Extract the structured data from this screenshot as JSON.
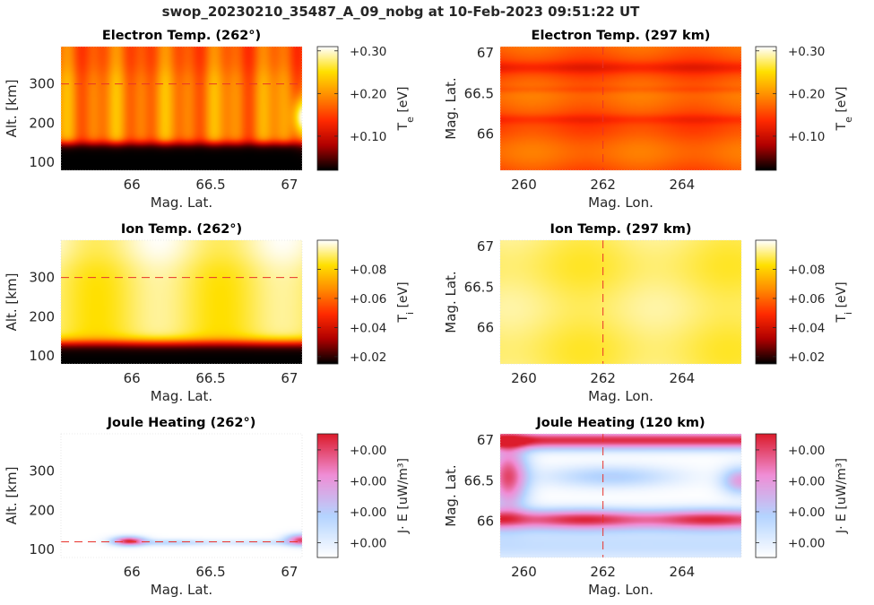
{
  "figure_title": "swop_20230210_35487_A_09_nobg at 10-Feb-2023 09:51:22 UT",
  "chart_data": [
    {
      "id": "te_alt",
      "type": "heatmap",
      "title": "Electron Temp. (262°)",
      "xlabel": "Mag. Lat.",
      "ylabel": "Alt. [km]",
      "xlim": [
        65.55,
        67.08
      ],
      "ylim": [
        80,
        395
      ],
      "xticks": [
        66,
        66.5,
        67
      ],
      "xtick_labels": [
        "66",
        "66.5",
        "67"
      ],
      "yticks": [
        100,
        200,
        300
      ],
      "ytick_labels": [
        "100",
        "200",
        "300"
      ],
      "guide": {
        "orientation": "horizontal",
        "value": 300
      },
      "colormap": "hot",
      "clim": [
        0.02,
        0.31
      ],
      "colorbar": {
        "label": "T_e [eV]",
        "ticks": [
          0.1,
          0.2,
          0.3
        ],
        "tick_labels": [
          "+0.10",
          "+0.20",
          "+0.30"
        ]
      },
      "field": "te_profile"
    },
    {
      "id": "te_map",
      "type": "heatmap",
      "title": "Electron Temp. (297 km)",
      "xlabel": "Mag. Lon.",
      "ylabel": "Mag. Lat.",
      "xlim": [
        259.4,
        265.5
      ],
      "ylim": [
        65.55,
        67.08
      ],
      "xticks": [
        260,
        262,
        264
      ],
      "xtick_labels": [
        "260",
        "262",
        "264"
      ],
      "yticks": [
        66,
        66.5,
        67
      ],
      "ytick_labels": [
        "66",
        "66.5",
        "67"
      ],
      "guide": {
        "orientation": "vertical",
        "value": 262
      },
      "colormap": "hot",
      "clim": [
        0.02,
        0.31
      ],
      "colorbar": {
        "label": "T_e [eV]",
        "ticks": [
          0.1,
          0.2,
          0.3
        ],
        "tick_labels": [
          "+0.10",
          "+0.20",
          "+0.30"
        ]
      },
      "field": "te_map"
    },
    {
      "id": "ti_alt",
      "type": "heatmap",
      "title": "Ion Temp. (262°)",
      "xlabel": "Mag. Lat.",
      "ylabel": "Alt. [km]",
      "xlim": [
        65.55,
        67.08
      ],
      "ylim": [
        80,
        395
      ],
      "xticks": [
        66,
        66.5,
        67
      ],
      "xtick_labels": [
        "66",
        "66.5",
        "67"
      ],
      "yticks": [
        100,
        200,
        300
      ],
      "ytick_labels": [
        "100",
        "200",
        "300"
      ],
      "guide": {
        "orientation": "horizontal",
        "value": 300
      },
      "colormap": "hot",
      "clim": [
        0.015,
        0.1
      ],
      "colorbar": {
        "label": "T_i [eV]",
        "ticks": [
          0.02,
          0.04,
          0.06,
          0.08
        ],
        "tick_labels": [
          "+0.02",
          "+0.04",
          "+0.06",
          "+0.08"
        ]
      },
      "field": "ti_profile"
    },
    {
      "id": "ti_map",
      "type": "heatmap",
      "title": "Ion Temp. (297 km)",
      "xlabel": "Mag. Lon.",
      "ylabel": "Mag. Lat.",
      "xlim": [
        259.4,
        265.5
      ],
      "ylim": [
        65.55,
        67.08
      ],
      "xticks": [
        260,
        262,
        264
      ],
      "xtick_labels": [
        "260",
        "262",
        "264"
      ],
      "yticks": [
        66,
        66.5,
        67
      ],
      "ytick_labels": [
        "66",
        "66.5",
        "67"
      ],
      "guide": {
        "orientation": "vertical",
        "value": 262
      },
      "colormap": "hot",
      "clim": [
        0.015,
        0.1
      ],
      "colorbar": {
        "label": "T_i [eV]",
        "ticks": [
          0.02,
          0.04,
          0.06,
          0.08
        ],
        "tick_labels": [
          "+0.02",
          "+0.04",
          "+0.06",
          "+0.08"
        ]
      },
      "field": "ti_map"
    },
    {
      "id": "jh_alt",
      "type": "heatmap",
      "title": "Joule Heating (262°)",
      "xlabel": "Mag. Lat.",
      "ylabel": "Alt. [km]",
      "xlim": [
        65.55,
        67.08
      ],
      "ylim": [
        80,
        395
      ],
      "xticks": [
        66,
        66.5,
        67
      ],
      "xtick_labels": [
        "66",
        "66.5",
        "67"
      ],
      "yticks": [
        100,
        200,
        300
      ],
      "ytick_labels": [
        "100",
        "200",
        "300"
      ],
      "guide": {
        "orientation": "horizontal",
        "value": 120
      },
      "colormap": "white-blue-pink-red",
      "clim": [
        0,
        1
      ],
      "colorbar": {
        "label": "J· E [uW/m³]",
        "ticks": [
          0.12,
          0.37,
          0.62,
          0.87
        ],
        "tick_labels": [
          "+0.00",
          "+0.00",
          "+0.00",
          "+0.00"
        ]
      },
      "field": "jh_profile"
    },
    {
      "id": "jh_map",
      "type": "heatmap",
      "title": "Joule Heating (120 km)",
      "xlabel": "Mag. Lon.",
      "ylabel": "Mag. Lat.",
      "xlim": [
        259.4,
        265.5
      ],
      "ylim": [
        65.55,
        67.08
      ],
      "xticks": [
        260,
        262,
        264
      ],
      "xtick_labels": [
        "260",
        "262",
        "264"
      ],
      "yticks": [
        66,
        66.5,
        67
      ],
      "ytick_labels": [
        "66",
        "66.5",
        "67"
      ],
      "guide": {
        "orientation": "vertical",
        "value": 262
      },
      "colormap": "white-blue-pink-red",
      "clim": [
        0,
        1
      ],
      "colorbar": {
        "label": "J· E [uW/m³]",
        "ticks": [
          0.12,
          0.37,
          0.62,
          0.87
        ],
        "tick_labels": [
          "+0.00",
          "+0.00",
          "+0.00",
          "+0.00"
        ]
      },
      "field": "jh_map"
    }
  ],
  "colors": {
    "guide_line": "#e8332b",
    "axis": "#262626",
    "colormap_hot": [
      "#000000",
      "#b00000",
      "#ff2a00",
      "#ff8a00",
      "#ffe000",
      "#ffffff"
    ],
    "colormap_jh": [
      "#ffffff",
      "#b4d4ff",
      "#f08ed6",
      "#dc1c2c"
    ]
  }
}
